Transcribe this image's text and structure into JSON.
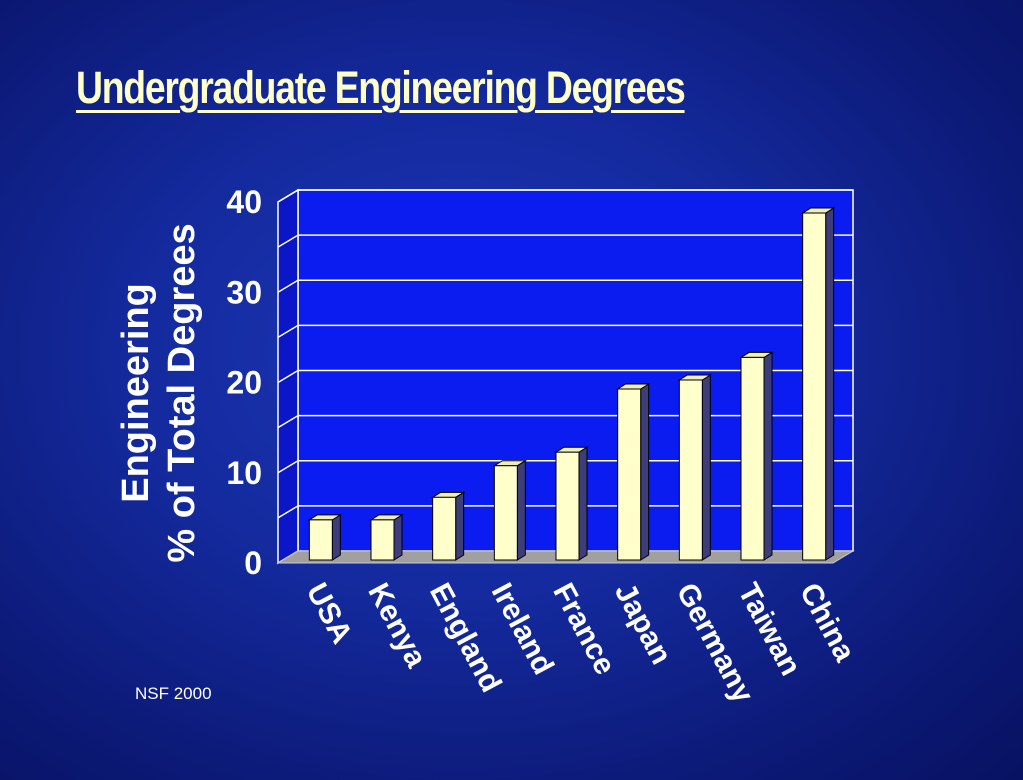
{
  "slide": {
    "title": "Undergraduate Engineering Degrees",
    "source": "NSF 2000"
  },
  "chart_data": {
    "type": "bar",
    "title": "",
    "ylabel_lines": [
      "Engineering",
      "% of Total Degrees"
    ],
    "xlabel": "",
    "ylim": [
      0,
      40
    ],
    "y_ticks": [
      0,
      10,
      20,
      30,
      40
    ],
    "categories": [
      "USA",
      "Kenya",
      "England",
      "Ireland",
      "France",
      "Japan",
      "Germany",
      "Taiwan",
      "China"
    ],
    "values": [
      5,
      5,
      7.5,
      11,
      12.5,
      19.5,
      20.5,
      23,
      39
    ],
    "grid": true,
    "colors": {
      "plot_background": "#0a1cf0",
      "bar_front": "#ffffcc",
      "bar_side": "#3d3d7a",
      "bar_top": "#eeeebb",
      "floor": "#a0a0a0",
      "axis": "#ffffff",
      "text": "#ffffff",
      "title": "#ffffcc"
    }
  }
}
